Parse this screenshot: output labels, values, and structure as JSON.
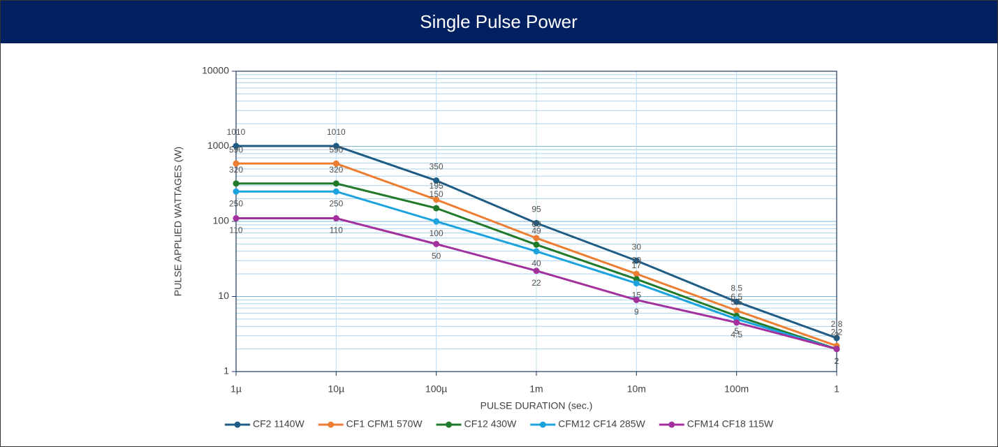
{
  "chart_data": {
    "type": "line",
    "title": "Single Pulse Power",
    "x_label": "PULSE DURATION (sec.)",
    "y_label": "PULSE APPLIED WATTAGES (W)",
    "x": [
      1e-06,
      1e-05,
      0.0001,
      0.001,
      0.01,
      0.1,
      1
    ],
    "xlim": [
      1e-06,
      1
    ],
    "xticks": [
      {
        "value": 1e-06,
        "label": "1µ"
      },
      {
        "value": 1e-05,
        "label": "10µ"
      },
      {
        "value": 0.0001,
        "label": "100µ"
      },
      {
        "value": 0.001,
        "label": "1m"
      },
      {
        "value": 0.01,
        "label": "10m"
      },
      {
        "value": 0.1,
        "label": "100m"
      },
      1
    ],
    "ylim": [
      1,
      10000
    ],
    "yticks": [
      1,
      10,
      100,
      1000,
      10000
    ],
    "x_log": true,
    "y_log": true,
    "grid": true,
    "minor_grid": true,
    "legend": "bottom",
    "series": [
      {
        "name": "CF2 1140W",
        "color": "#1f5c85",
        "values": [
          1010,
          1010,
          350,
          95,
          30,
          8.5,
          2.8
        ]
      },
      {
        "name": "CF1 CFM1 570W",
        "color": "#ed7d31",
        "values": [
          590,
          590,
          195,
          60,
          20,
          6.5,
          2.2
        ]
      },
      {
        "name": "CF12 430W",
        "color": "#217a2a",
        "values": [
          320,
          320,
          150,
          49,
          17,
          5.5,
          2
        ]
      },
      {
        "name": "CFM12 CF14 285W",
        "color": "#1ba3dd",
        "values": [
          250,
          250,
          100,
          40,
          15,
          5,
          2
        ]
      },
      {
        "name": "CFM14 CF18 115W",
        "color": "#a2309d",
        "values": [
          110,
          110,
          50,
          22,
          9,
          4.5,
          2
        ]
      }
    ]
  }
}
